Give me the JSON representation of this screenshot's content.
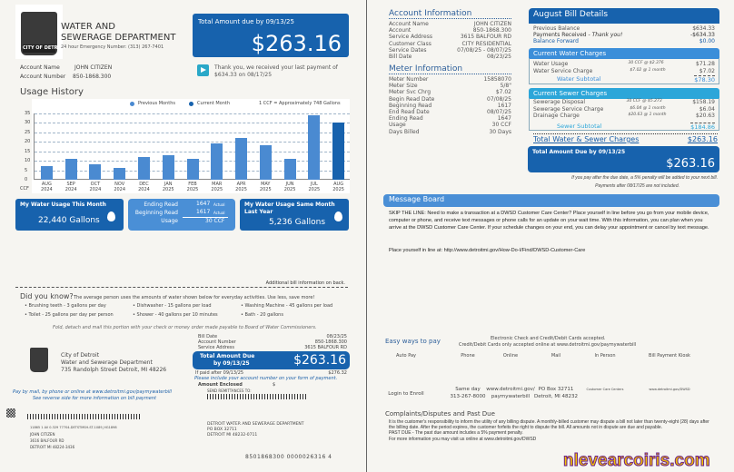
{
  "header": {
    "dept_line1": "WATER AND",
    "dept_line2": "SEWERAGE DEPARTMENT",
    "emergency": "24 hour Emergency Number: (313) 267-7401",
    "logo_text": "CITY OF DETROIT"
  },
  "due_box": {
    "title": "Total Amount due by 09/13/25",
    "amount": "$263.16"
  },
  "payment_note": "Thank you, we received your last payment of $634.33 on 08/17/25",
  "account": {
    "name_label": "Account Name",
    "name": "JOHN CITIZEN",
    "number_label": "Account Number",
    "number": "850-1868.300"
  },
  "usage": {
    "title": "Usage History",
    "legend_prev": "Previous Months",
    "legend_curr": "Current Month",
    "note": "1 CCF = Approximately 748 Gallons",
    "unit": "CCF"
  },
  "chart_data": {
    "type": "bar",
    "categories": [
      "AUG 2024",
      "SEP 2024",
      "OCT 2024",
      "NOV 2024",
      "DEC 2024",
      "JAN 2025",
      "FEB 2025",
      "MAR 2025",
      "APR 2025",
      "MAY 2025",
      "JUN 2025",
      "JUL 2025",
      "AUG 2025"
    ],
    "values": [
      7,
      11,
      8,
      6,
      12,
      13,
      11,
      19,
      22,
      18,
      11,
      34,
      30
    ],
    "ylim": [
      0,
      35
    ],
    "yticks": [
      0,
      5,
      10,
      15,
      20,
      25,
      30,
      35
    ],
    "ylabel": "CCF",
    "colors": {
      "previous": "#4a8ad1",
      "current": "#1762ad"
    },
    "grid": true
  },
  "boxes": {
    "this_month_title": "My Water Usage This Month",
    "this_month_value": "22,440 Gallons",
    "ending_label": "Ending Read",
    "ending_value": "1647",
    "ending_tag": "Actual",
    "beginning_label": "Beginning Read",
    "beginning_value": "1617",
    "beginning_tag": "Actual",
    "usage_label": "Usage",
    "usage_value": "30 CCF",
    "last_year_title": "My Water Usage Same Month Last Year",
    "last_year_value": "5,236 Gallons"
  },
  "additional": "Additional bill information on back.",
  "did_you_know": {
    "title": "Did you know?",
    "intro": "The average person uses the amounts of water shown below for everyday activities.  Use less, save more!",
    "items": [
      "Brushing teeth - 3 gallons per day",
      "Dishwasher - 15 gallons per load",
      "Washing Machine - 45 gallons per load",
      "Toilet - 25 gallons per day per person",
      "Shower - 40 gallons per 10 minutes",
      "Bath - 20 gallons"
    ]
  },
  "fold_note": "Fold, detach and mail this portion with your check or money order made payable to Board of Water Commissioners.",
  "stub": {
    "city": "City of Detroit",
    "dept": "Water and Sewerage Department",
    "address": "735 Randolph Street Detroit, MI 48226",
    "bill_date_label": "Bill Date",
    "bill_date": "08/23/25",
    "acct_label": "Account Number",
    "acct": "850-1868.300",
    "svc_label": "Service Address",
    "svc": "3615 BALFOUR RD",
    "due_title1": "Total Amount Due",
    "due_title2": "by 09/13/25",
    "due_amount": "$263.16",
    "after_label": "If paid after 09/13/25",
    "after_amount": "$276.32",
    "include_note": "Please include your account number on your form of payment.",
    "enclosed_label": "Amount Enclosed",
    "enclosed_symbol": "$",
    "remit_label": "SEND REMITTANCES TO:",
    "pay_note1": "Pay by mail, by phone or online at www.detroitmi.gov/paymywaterbill",
    "pay_note2": "See reverse side for more information on bill payment",
    "mail_code": "11865 1 AV 0.329  77704-DETSTMSH-ST-1089_HG1898",
    "cust_name": "JOHN CITIZEN",
    "cust_addr1": "3616 BALFOUR RD",
    "cust_addr2": "DETROIT  MI  48224-3436",
    "remit_name": "DETROIT WATER AND SEWERAGE DEPARTMENT",
    "remit_addr1": "PO BOX 32711",
    "remit_addr2": "DETROIT  MI  48232-0711",
    "scanline": "8501868300 0000026316 4"
  },
  "account_info": {
    "title": "Account Information",
    "rows": [
      [
        "Account Name",
        "JOHN CITIZEN"
      ],
      [
        "Account",
        "850-1868.300"
      ],
      [
        "Service Address",
        "3615 BALFOUR RD"
      ],
      [
        "Customer Class",
        "CITY RESIDENTIAL"
      ],
      [
        "Service Dates",
        "07/08/25 - 08/07/25"
      ],
      [
        "Bill Date",
        "08/23/25"
      ]
    ]
  },
  "meter_info": {
    "title": "Meter Information",
    "rows": [
      [
        "Meter Number",
        "15858070"
      ],
      [
        "Meter Size",
        "5/8\""
      ],
      [
        "Meter Svc Chrg",
        "$7.02"
      ],
      [
        "Begin Read Date",
        "07/08/25"
      ],
      [
        "Beginning Read",
        "1617"
      ],
      [
        "End Read Date",
        "08/07/25"
      ],
      [
        "Ending Read",
        "1647"
      ],
      [
        "Usage",
        "30 CCF"
      ],
      [
        "Days Billed",
        "30 Days"
      ]
    ]
  },
  "bill_details": {
    "title": "August Bill Details",
    "prev_label": "Previous Balance",
    "prev": "$634.33",
    "paid_label": "Payments Received - ",
    "paid_thanks": "Thank you!",
    "paid": "-$634.33",
    "fwd_label": "Balance Forward",
    "fwd": "$0.00",
    "water_title": "Current Water Charges",
    "water_rows": [
      [
        "Water Usage",
        "30 CCF @ $2.376",
        "$71.28"
      ],
      [
        "Water Service Charge",
        "$7.02 @ 1 month",
        "$7.02"
      ]
    ],
    "water_sub_label": "Water Subtotal",
    "water_sub": "$78.30",
    "sewer_title": "Current Sewer Charges",
    "sewer_rows": [
      [
        "Sewerage Disposal",
        "30 CCF @ $5.273",
        "$158.19"
      ],
      [
        "Sewerage Service Charge",
        "$6.04 @ 1 month",
        "$6.04"
      ],
      [
        "Drainage Charge",
        "$20.63 @ 1 month",
        "$20.63"
      ]
    ],
    "sewer_sub_label": "Sewer Subtotal",
    "sewer_sub": "$184.86",
    "total_label": "Total Water & Sewer Charges",
    "total": "$263.16",
    "due_title": "Total Amount Due by 09/13/25",
    "due_amount": "$263.16",
    "penalty1": "If you pay after the due date, a 5% penalty will be added to your next bill.",
    "penalty2": "Payments after 08/17/25 are not included."
  },
  "message_board": {
    "title": "Message Board",
    "text": "SKIP THE LINE: Need to make a transaction at a DWSD Customer Care Center? Place yourself in line before you go from your mobile device, computer or phone, and receive text messages or phone calls for an update on your wait time. With this information, you can plan when you arrive at the DWSD Customer Care Center. If your schedule changes on your end, you can delay your appointment or cancel by text message.",
    "link_text": "Place yourself in line at: http://www.detroitmi.gov/How-Do-I/Find/DWSD-Customer-Care"
  },
  "pay": {
    "title": "Easy ways to pay",
    "note1": "Electronic Check and Credit/Debit Cards accepted.",
    "note2": "Credit/Debit Cards only accepted online  at www.detroitmi.gov/paymywaterbill",
    "methods": [
      {
        "label": "Auto Pay",
        "detail": "Login to Enroll"
      },
      {
        "label": "Phone",
        "detail": "Same day\n313-267-8000"
      },
      {
        "label": "Online",
        "detail": "www.detroitmi.gov/\npaymywaterbill"
      },
      {
        "label": "Mail",
        "detail": "PO Box 32711\nDetroit, MI 48232"
      },
      {
        "label": "In Person",
        "detail": "Customer Care Centers"
      },
      {
        "label": "Bill Payment Kiosk",
        "detail": "www.detroitmi.gov/DWSD"
      }
    ]
  },
  "complaints": {
    "title": "Complaints/Disputes and  Past  Due",
    "text": "It is the customer's responsibility to inform the utility of any billing dispute.  A monthly-billed customer may dispute a bill not later than twenty-eight (28) days after the billing date.  After the period expires, the customer forfeits the right to dispute the bill.  All amounts not in dispute are due and payable.",
    "past_due": "PAST DUE - The past due amount includes a 5% payment penalty.",
    "more": "For more information you may visit us online at www.detroitmi.gov/DWSD"
  },
  "watermark": "nlevearcoiris.com"
}
